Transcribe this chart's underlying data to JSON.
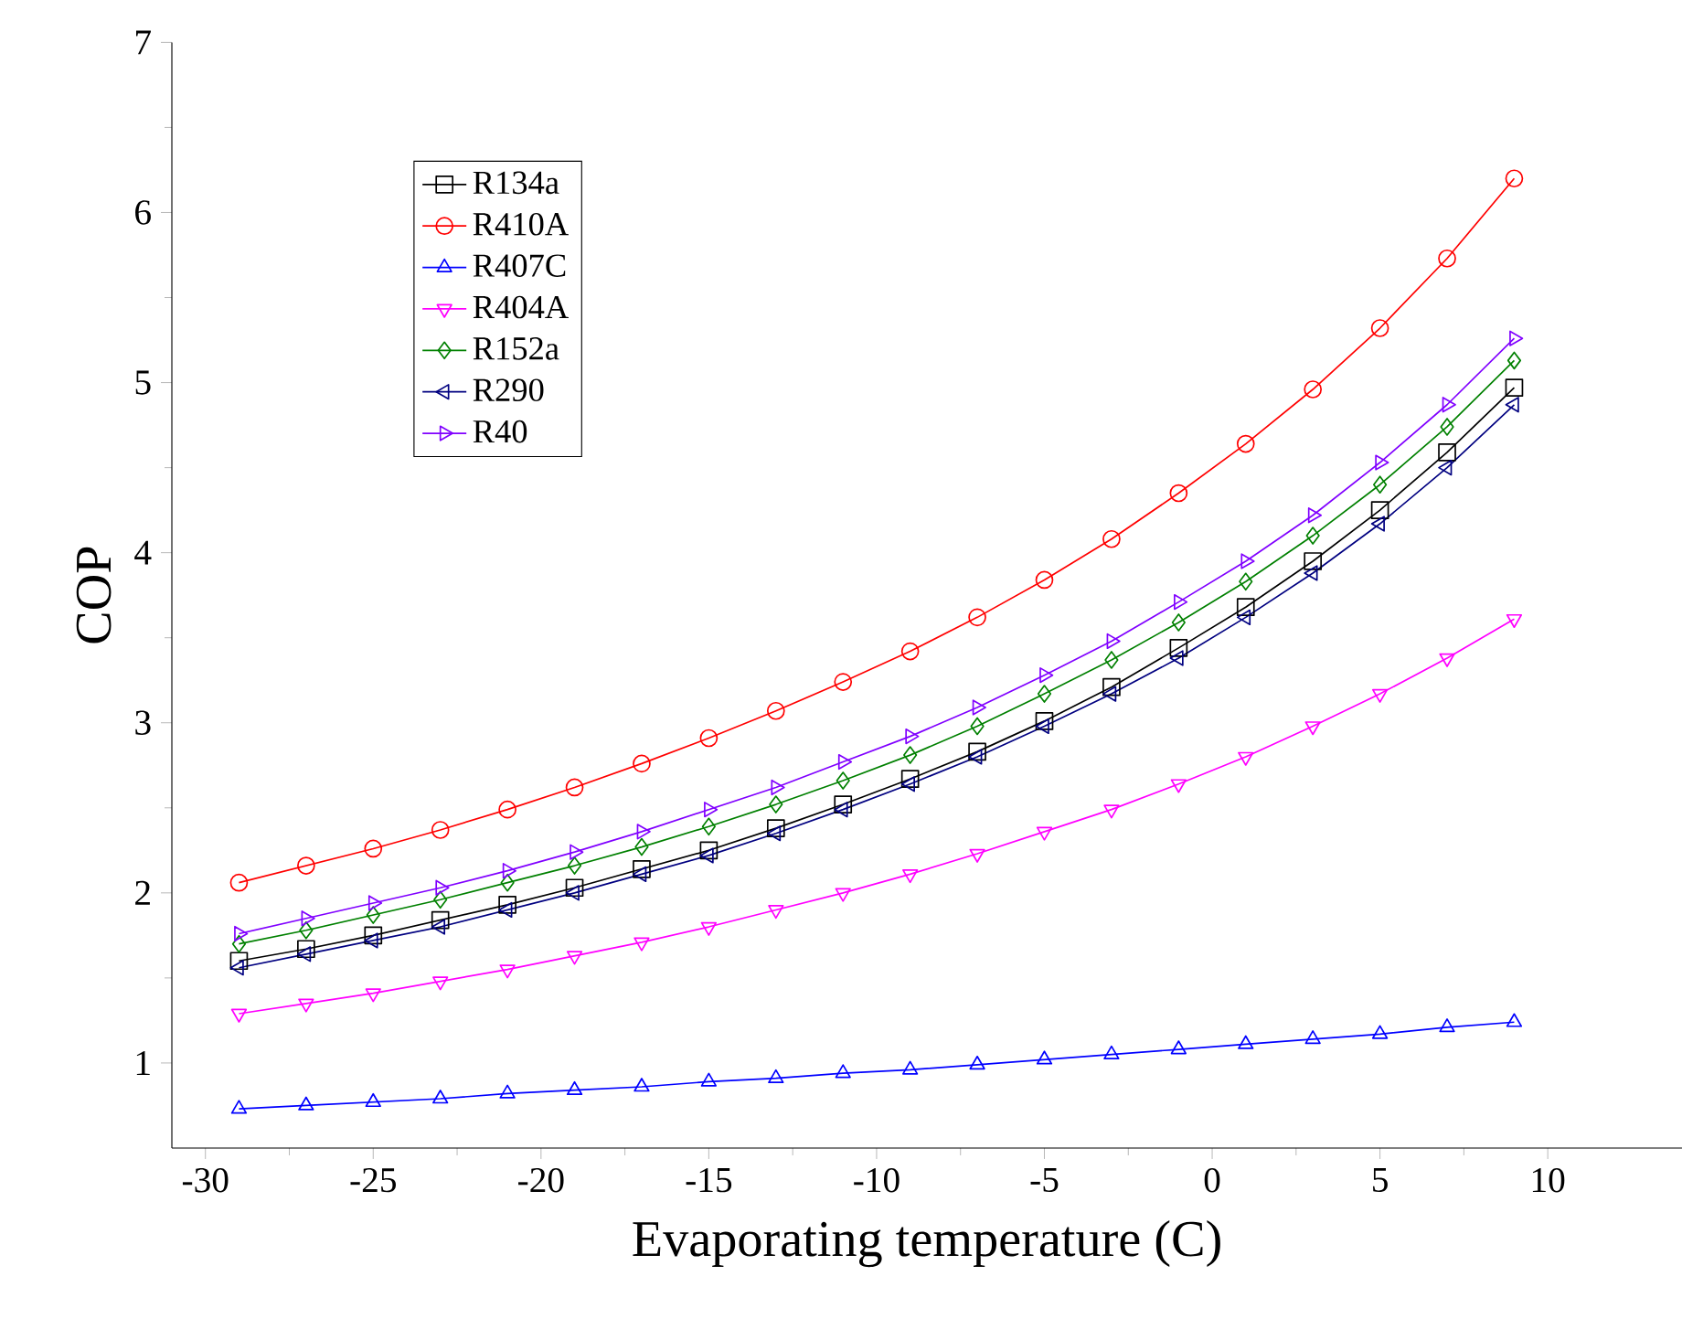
{
  "chart_data": {
    "type": "line",
    "xlabel": "Evaporating temperature (C)",
    "ylabel": "COP",
    "x": [
      -29,
      -27,
      -25,
      -23,
      -21,
      -19,
      -17,
      -15,
      -13,
      -11,
      -9,
      -7,
      -5,
      -3,
      -1,
      1,
      3,
      5,
      7,
      9
    ],
    "xlim": [
      -31,
      14
    ],
    "xticks": [
      -30,
      -25,
      -20,
      -15,
      -10,
      -5,
      0,
      5,
      10
    ],
    "ylim": [
      0.5,
      7
    ],
    "yticks": [
      1,
      2,
      3,
      4,
      5,
      6,
      7
    ],
    "grid": false,
    "legend": "top left",
    "series": [
      {
        "name": "R134a",
        "color": "#000000",
        "marker": "square",
        "values": [
          1.6,
          1.67,
          1.75,
          1.84,
          1.93,
          2.03,
          2.14,
          2.25,
          2.38,
          2.52,
          2.67,
          2.83,
          3.01,
          3.21,
          3.44,
          3.68,
          3.95,
          4.25,
          4.59,
          4.97
        ]
      },
      {
        "name": "R410A",
        "color": "#ff0000",
        "marker": "circle",
        "values": [
          2.06,
          2.16,
          2.26,
          2.37,
          2.49,
          2.62,
          2.76,
          2.91,
          3.07,
          3.24,
          3.42,
          3.62,
          3.84,
          4.08,
          4.35,
          4.64,
          4.96,
          5.32,
          5.73,
          6.2
        ]
      },
      {
        "name": "R407C",
        "color": "#0000ff",
        "marker": "triangle",
        "values": [
          0.73,
          0.75,
          0.77,
          0.79,
          0.82,
          0.84,
          0.86,
          0.89,
          0.91,
          0.94,
          0.96,
          0.99,
          1.02,
          1.05,
          1.08,
          1.11,
          1.14,
          1.17,
          1.21,
          1.24
        ]
      },
      {
        "name": "R404A",
        "color": "#ff00ff",
        "marker": "triangle_down",
        "values": [
          1.29,
          1.35,
          1.41,
          1.48,
          1.55,
          1.63,
          1.71,
          1.8,
          1.9,
          2.0,
          2.11,
          2.23,
          2.36,
          2.49,
          2.64,
          2.8,
          2.98,
          3.17,
          3.38,
          3.61
        ]
      },
      {
        "name": "R152a",
        "color": "#008000",
        "marker": "diamond",
        "values": [
          1.7,
          1.78,
          1.87,
          1.96,
          2.06,
          2.16,
          2.27,
          2.39,
          2.52,
          2.66,
          2.81,
          2.98,
          3.17,
          3.37,
          3.59,
          3.83,
          4.1,
          4.4,
          4.74,
          5.13
        ]
      },
      {
        "name": "R290",
        "color": "#000080",
        "marker": "triangle_left",
        "values": [
          1.56,
          1.64,
          1.72,
          1.8,
          1.9,
          2.0,
          2.11,
          2.22,
          2.35,
          2.49,
          2.64,
          2.8,
          2.98,
          3.17,
          3.38,
          3.62,
          3.88,
          4.17,
          4.5,
          4.87
        ]
      },
      {
        "name": "R40",
        "color": "#8000ff",
        "marker": "triangle_right",
        "values": [
          1.76,
          1.85,
          1.94,
          2.03,
          2.13,
          2.24,
          2.36,
          2.49,
          2.62,
          2.77,
          2.92,
          3.09,
          3.28,
          3.48,
          3.71,
          3.95,
          4.22,
          4.53,
          4.87,
          5.26
        ]
      }
    ]
  }
}
